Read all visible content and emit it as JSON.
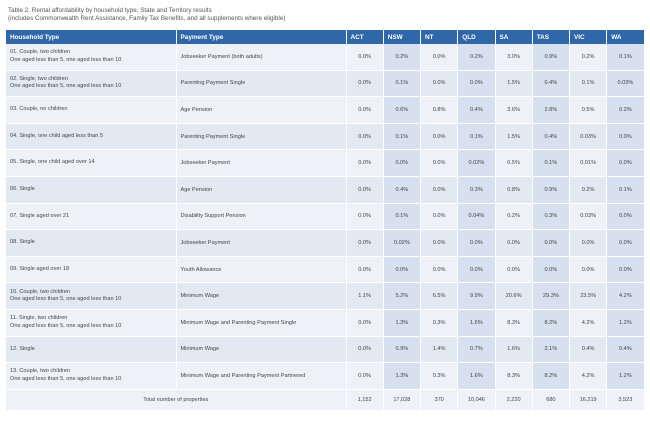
{
  "caption": {
    "line1": "Table 2. Rental affordability by household type, State and Territory results",
    "line2": "(includes Commonwealth Rent Assistance, Family Tax Benefits, and all supplements where eligible)"
  },
  "table": {
    "headers": {
      "household": "Household Type",
      "payment": "Payment Type",
      "states": [
        "ACT",
        "NSW",
        "NT",
        "QLD",
        "SA",
        "TAS",
        "VIC",
        "WA"
      ]
    },
    "rows": [
      {
        "household": [
          "01. Couple, two children",
          "One aged less than 5, one aged less than 10"
        ],
        "payment": "Jobseeker Payment (both adults)",
        "values": [
          "0.0%",
          "0.2%",
          "0.0%",
          "0.2%",
          "3.0%",
          "0.9%",
          "0.2%",
          "0.1%"
        ]
      },
      {
        "household": [
          "02. Single, two children",
          "One aged less than 5, one aged less than 10"
        ],
        "payment": "Parenting Payment Single",
        "values": [
          "0.0%",
          "0.1%",
          "0.0%",
          "0.0%",
          "1.5%",
          "0.4%",
          "0.1%",
          "0.03%"
        ]
      },
      {
        "household": [
          "03. Couple, no children"
        ],
        "payment": "Age Pension",
        "values": [
          "0.0%",
          "0.6%",
          "0.8%",
          "0.4%",
          "3.6%",
          "2.8%",
          "0.5%",
          "0.2%"
        ]
      },
      {
        "household": [
          "04. Single, one child aged less than 5"
        ],
        "payment": "Parenting Payment Single",
        "values": [
          "0.0%",
          "0.1%",
          "0.0%",
          "0.1%",
          "1.5%",
          "0.4%",
          "0.03%",
          "0.0%"
        ]
      },
      {
        "household": [
          "05. Single, one child aged over 14"
        ],
        "payment": "Jobseeker Payment",
        "values": [
          "0.0%",
          "0.0%",
          "0.0%",
          "0.02%",
          "0.5%",
          "0.1%",
          "0.01%",
          "0.0%"
        ]
      },
      {
        "household": [
          "06. Single"
        ],
        "payment": "Age Pension",
        "values": [
          "0.0%",
          "0.4%",
          "0.0%",
          "0.3%",
          "0.8%",
          "0.9%",
          "0.2%",
          "0.1%"
        ]
      },
      {
        "household": [
          "07. Single aged over 21"
        ],
        "payment": "Disability Support Pension",
        "values": [
          "0.0%",
          "0.1%",
          "0.0%",
          "0.04%",
          "0.2%",
          "0.3%",
          "0.03%",
          "0.0%"
        ]
      },
      {
        "household": [
          "08. Single"
        ],
        "payment": "Jobseeker Payment",
        "values": [
          "0.0%",
          "0.02%",
          "0.0%",
          "0.0%",
          "0.0%",
          "0.0%",
          "0.0%",
          "0.0%"
        ]
      },
      {
        "household": [
          "09. Single aged over 18"
        ],
        "payment": "Youth Allowance",
        "values": [
          "0.0%",
          "0.0%",
          "0.0%",
          "0.0%",
          "0.0%",
          "0.0%",
          "0.0%",
          "0.0%"
        ]
      },
      {
        "household": [
          "10. Couple, two children",
          "One aged less than 5, one aged less than 10"
        ],
        "payment": "Minimum Wage",
        "values": [
          "1.1%",
          "5.2%",
          "6.5%",
          "9.9%",
          "20.6%",
          "29.3%",
          "23.5%",
          "4.2%"
        ]
      },
      {
        "household": [
          "11. Single, two children",
          "One aged less than 5, one aged less than 10"
        ],
        "payment": "Minimum Wage and Parenting Payment Single",
        "values": [
          "0.0%",
          "1.3%",
          "0.3%",
          "1.6%",
          "8.3%",
          "8.2%",
          "4.2%",
          "1.2%"
        ]
      },
      {
        "household": [
          "12. Single"
        ],
        "payment": "Minimum Wage",
        "values": [
          "0.0%",
          "0.9%",
          "1.4%",
          "0.7%",
          "1.6%",
          "2.1%",
          "0.4%",
          "0.4%"
        ]
      },
      {
        "household": [
          "13. Couple, two children",
          "One aged less than 5, one aged less than 10"
        ],
        "payment": "Minimum Wage and Parenting Payment Partnered",
        "values": [
          "0.0%",
          "1.3%",
          "0.3%",
          "1.6%",
          "8.3%",
          "8.2%",
          "4.2%",
          "1.2%"
        ]
      }
    ],
    "total": {
      "label": "Total number of properties",
      "values": [
        "1,152",
        "17,028",
        "370",
        "10,046",
        "2,220",
        "680",
        "16,219",
        "3,523"
      ]
    }
  },
  "colors": {
    "header_bg": "#2f67a8",
    "row_bg": "#eef2f8",
    "shaded_col_bg": "#d6e0ee"
  }
}
